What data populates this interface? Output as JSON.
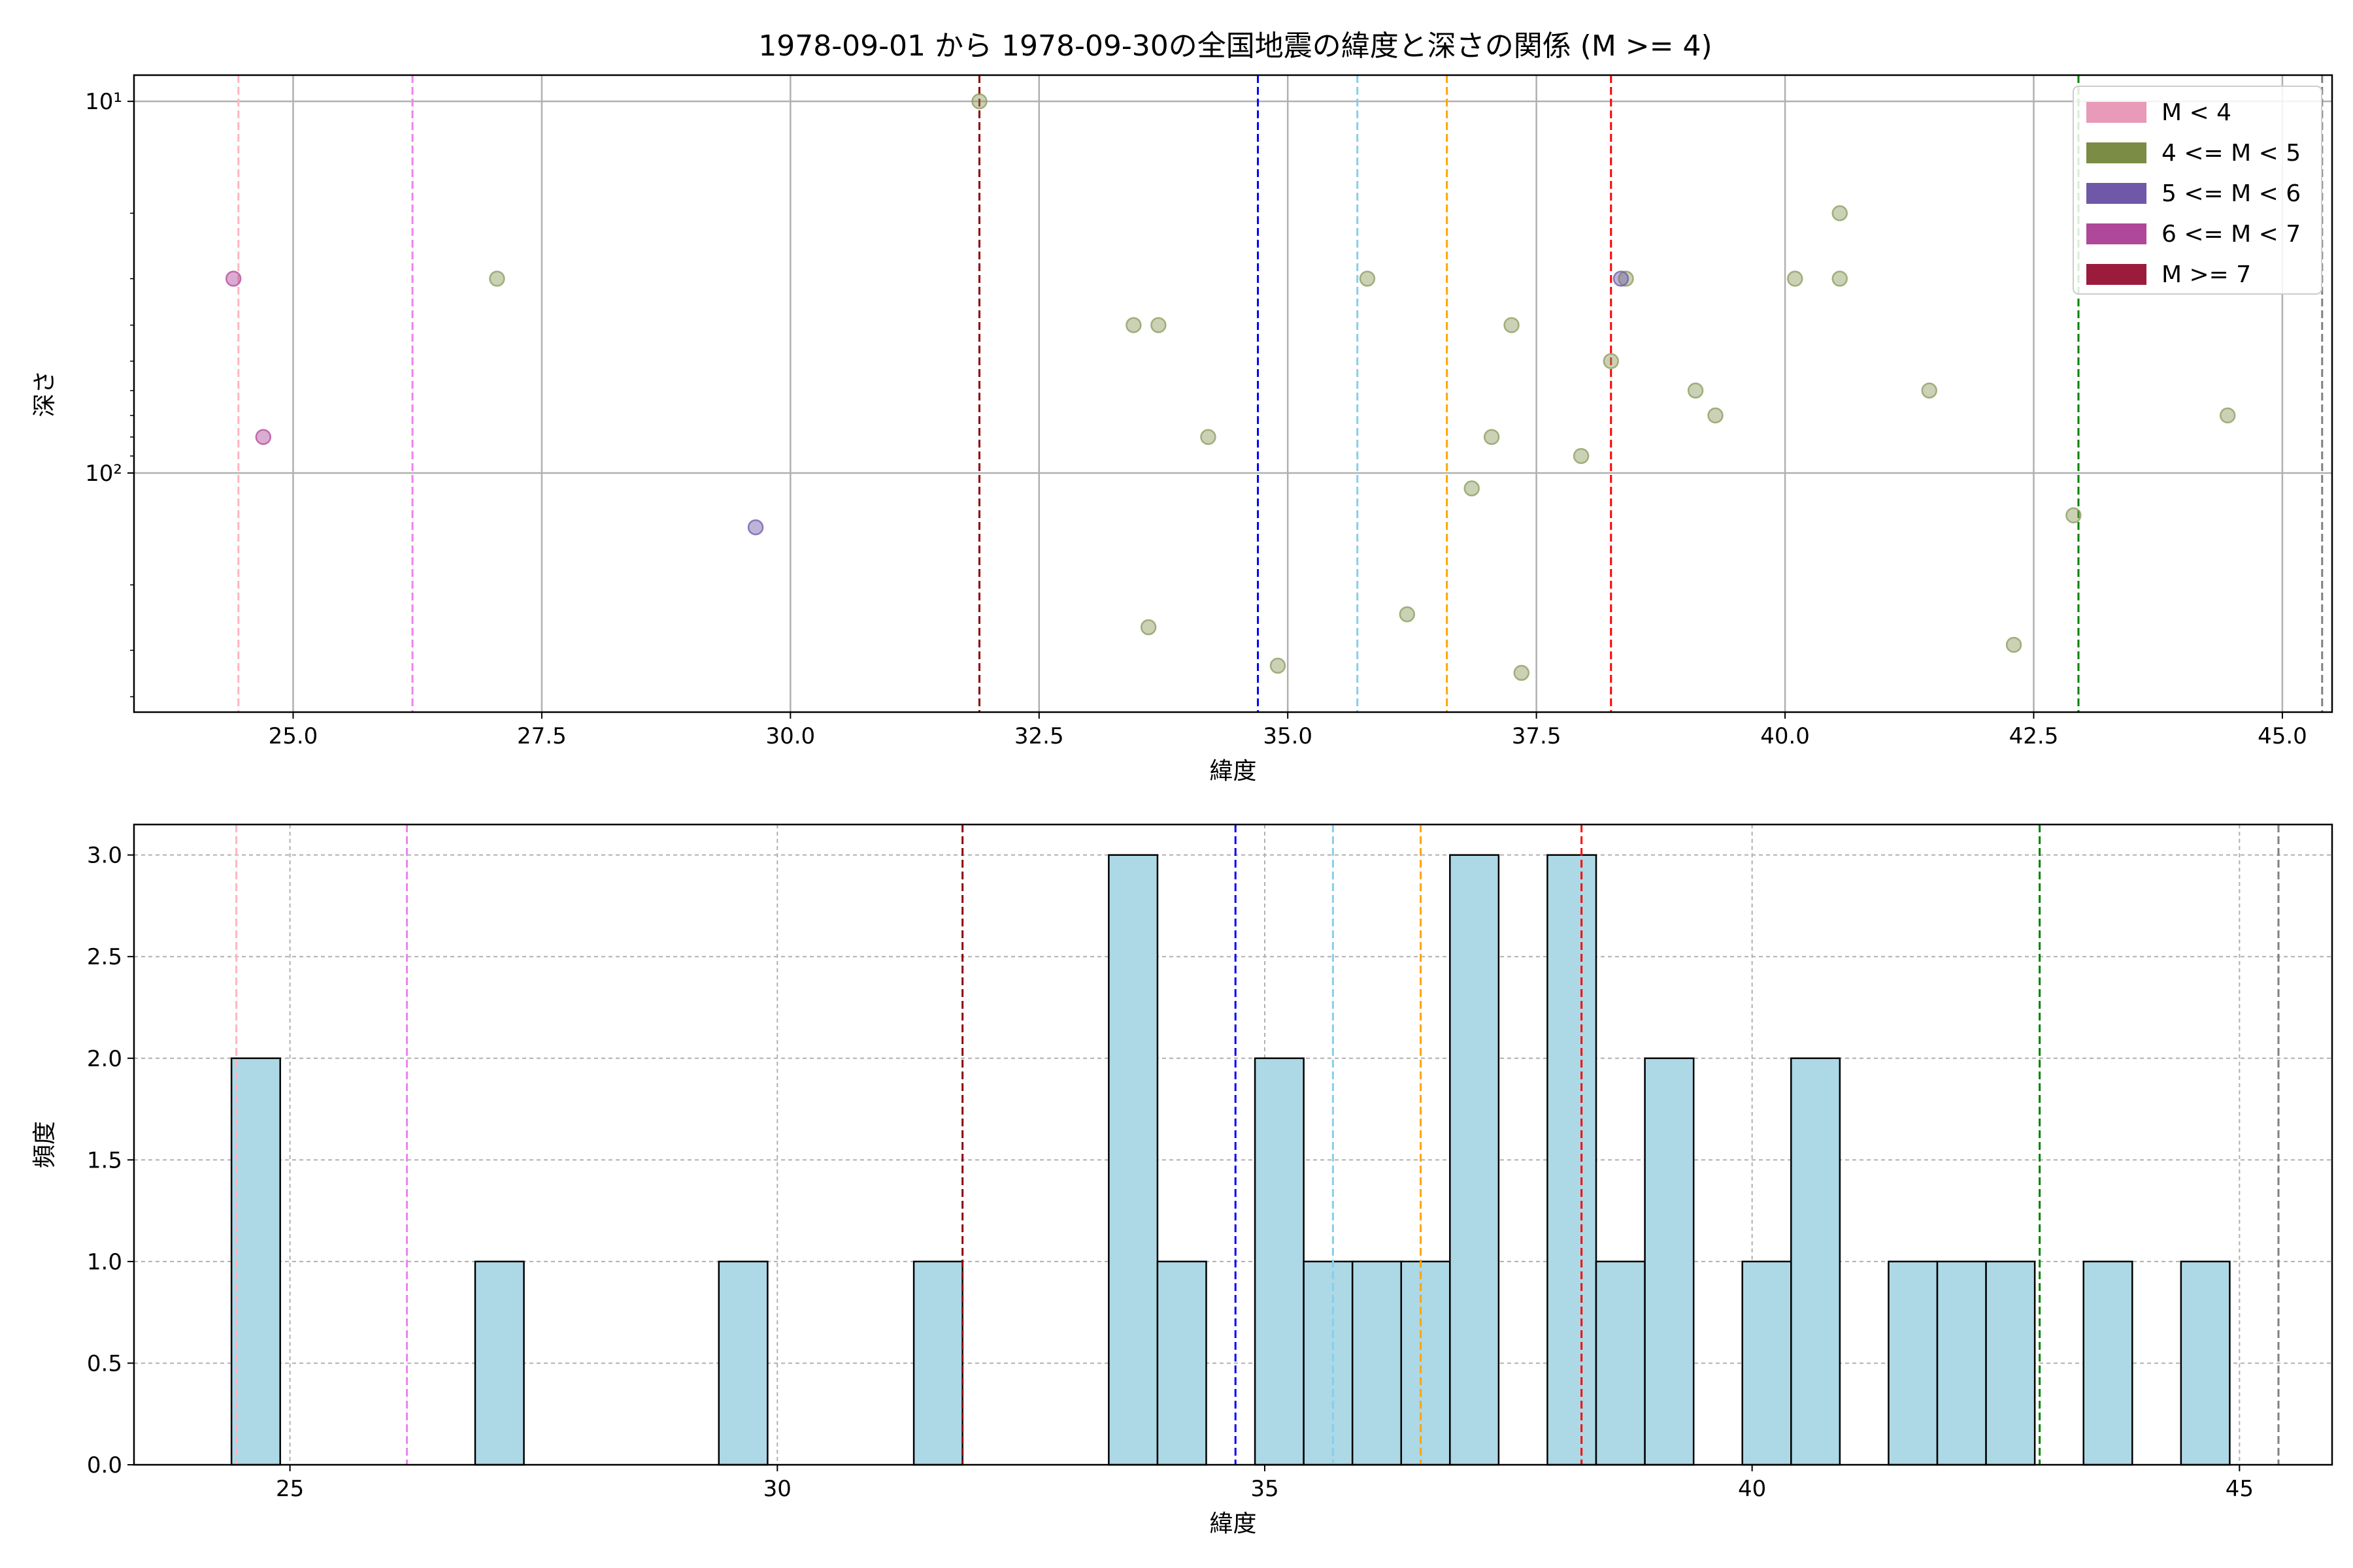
{
  "chart_data": [
    {
      "type": "scatter",
      "title": "1978-09-01 から 1978-09-30の全国地震の緯度と深さの関係 (M >= 4)",
      "xlabel": "緯度",
      "ylabel": "深さ",
      "xlim": [
        23.4,
        45.5
      ],
      "ylim": [
        440,
        8.5
      ],
      "yscale": "log",
      "y_inverted": true,
      "xticks": [
        25.0,
        27.5,
        30.0,
        32.5,
        35.0,
        37.5,
        40.0,
        42.5,
        45.0
      ],
      "xtick_labels": [
        "25.0",
        "27.5",
        "30.0",
        "32.5",
        "35.0",
        "37.5",
        "40.0",
        "42.5",
        "45.0"
      ],
      "yticks": [
        10,
        100
      ],
      "ytick_labels": [
        "10¹",
        "10²"
      ],
      "grid": true,
      "legend": {
        "placement": "top-right",
        "entries": [
          {
            "label": "M < 4",
            "color": "#e89ab8"
          },
          {
            "label": "4 <= M < 5",
            "color": "#7b8c45"
          },
          {
            "label": "5 <= M < 6",
            "color": "#6f58a8"
          },
          {
            "label": "6 <= M < 7",
            "color": "#b0489a"
          },
          {
            "label": "M >= 7",
            "color": "#9b1b3c"
          }
        ]
      },
      "vlines": [
        {
          "x": 24.45,
          "color": "#ffb6c1"
        },
        {
          "x": 26.2,
          "color": "#ee82ee"
        },
        {
          "x": 31.9,
          "color": "#8b0000"
        },
        {
          "x": 34.7,
          "color": "#0000ff"
        },
        {
          "x": 35.7,
          "color": "#87ceeb"
        },
        {
          "x": 36.6,
          "color": "#ffa500"
        },
        {
          "x": 38.25,
          "color": "#ff0000"
        },
        {
          "x": 42.95,
          "color": "#008000"
        },
        {
          "x": 45.4,
          "color": "#808080"
        }
      ],
      "series": [
        {
          "magnitude_class": "4 <= M < 5",
          "color": "#8a9a5b",
          "points": [
            {
              "x": 27.05,
              "y": 30
            },
            {
              "x": 31.9,
              "y": 10
            },
            {
              "x": 33.45,
              "y": 40
            },
            {
              "x": 33.7,
              "y": 40
            },
            {
              "x": 33.6,
              "y": 260
            },
            {
              "x": 34.2,
              "y": 80
            },
            {
              "x": 34.9,
              "y": 330
            },
            {
              "x": 35.8,
              "y": 30
            },
            {
              "x": 36.2,
              "y": 240
            },
            {
              "x": 36.85,
              "y": 110
            },
            {
              "x": 37.05,
              "y": 80
            },
            {
              "x": 37.25,
              "y": 40
            },
            {
              "x": 37.35,
              "y": 345
            },
            {
              "x": 37.95,
              "y": 90
            },
            {
              "x": 38.25,
              "y": 50
            },
            {
              "x": 38.4,
              "y": 30
            },
            {
              "x": 39.1,
              "y": 60
            },
            {
              "x": 39.3,
              "y": 70
            },
            {
              "x": 40.1,
              "y": 30
            },
            {
              "x": 40.55,
              "y": 20
            },
            {
              "x": 40.55,
              "y": 30
            },
            {
              "x": 41.45,
              "y": 60
            },
            {
              "x": 42.3,
              "y": 290
            },
            {
              "x": 42.9,
              "y": 130
            },
            {
              "x": 44.45,
              "y": 70
            }
          ]
        },
        {
          "magnitude_class": "5 <= M < 6",
          "color": "#6f58a8",
          "points": [
            {
              "x": 29.65,
              "y": 140
            },
            {
              "x": 38.35,
              "y": 30
            }
          ]
        },
        {
          "magnitude_class": "6 <= M < 7",
          "color": "#b0489a",
          "points": [
            {
              "x": 24.4,
              "y": 30
            },
            {
              "x": 24.7,
              "y": 80
            }
          ]
        }
      ]
    },
    {
      "type": "bar",
      "subtype": "histogram",
      "xlabel": "緯度",
      "ylabel": "頻度",
      "xlim": [
        23.4,
        45.95
      ],
      "ylim": [
        0,
        3.15
      ],
      "xticks": [
        25,
        30,
        35,
        40,
        45
      ],
      "xtick_labels": [
        "25",
        "30",
        "35",
        "40",
        "45"
      ],
      "yticks": [
        0.0,
        0.5,
        1.0,
        1.5,
        2.0,
        2.5,
        3.0
      ],
      "ytick_labels": [
        "0.0",
        "0.5",
        "1.0",
        "1.5",
        "2.0",
        "2.5",
        "3.0"
      ],
      "grid": true,
      "bar_color": "#add8e6",
      "bins": [
        {
          "x0": 24.4,
          "x1": 24.9,
          "count": 2
        },
        {
          "x0": 26.9,
          "x1": 27.4,
          "count": 1
        },
        {
          "x0": 29.4,
          "x1": 29.9,
          "count": 1
        },
        {
          "x0": 31.4,
          "x1": 31.9,
          "count": 1
        },
        {
          "x0": 33.4,
          "x1": 33.9,
          "count": 3
        },
        {
          "x0": 33.9,
          "x1": 34.4,
          "count": 1
        },
        {
          "x0": 34.9,
          "x1": 35.4,
          "count": 2
        },
        {
          "x0": 35.4,
          "x1": 35.9,
          "count": 1
        },
        {
          "x0": 35.9,
          "x1": 36.4,
          "count": 1
        },
        {
          "x0": 36.4,
          "x1": 36.9,
          "count": 1
        },
        {
          "x0": 36.9,
          "x1": 37.4,
          "count": 3
        },
        {
          "x0": 37.9,
          "x1": 38.4,
          "count": 3
        },
        {
          "x0": 38.4,
          "x1": 38.9,
          "count": 1
        },
        {
          "x0": 38.9,
          "x1": 39.4,
          "count": 2
        },
        {
          "x0": 39.9,
          "x1": 40.4,
          "count": 1
        },
        {
          "x0": 40.4,
          "x1": 40.9,
          "count": 2
        },
        {
          "x0": 41.4,
          "x1": 41.9,
          "count": 1
        },
        {
          "x0": 41.9,
          "x1": 42.4,
          "count": 1
        },
        {
          "x0": 42.4,
          "x1": 42.9,
          "count": 1
        },
        {
          "x0": 43.4,
          "x1": 43.9,
          "count": 1
        },
        {
          "x0": 44.4,
          "x1": 44.9,
          "count": 1
        }
      ],
      "vlines": [
        {
          "x": 24.45,
          "color": "#ffb6c1"
        },
        {
          "x": 26.2,
          "color": "#ee82ee"
        },
        {
          "x": 31.9,
          "color": "#8b0000"
        },
        {
          "x": 34.7,
          "color": "#0000ff"
        },
        {
          "x": 35.7,
          "color": "#87ceeb"
        },
        {
          "x": 36.6,
          "color": "#ffa500"
        },
        {
          "x": 38.25,
          "color": "#ff0000"
        },
        {
          "x": 42.95,
          "color": "#008000"
        },
        {
          "x": 45.4,
          "color": "#808080"
        }
      ]
    }
  ]
}
